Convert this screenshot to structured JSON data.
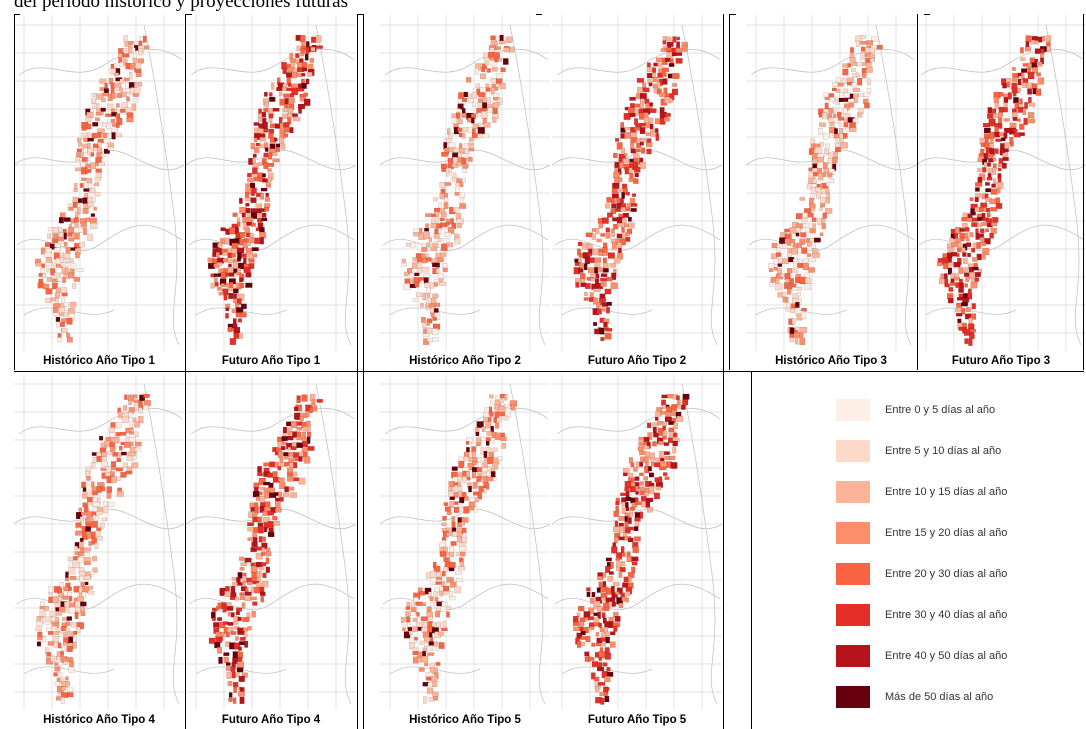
{
  "header": {
    "title": "del período histórico y proyecciones futuras"
  },
  "panels": [
    {
      "caption": "Histórico Año Tipo 1",
      "intensity": 0
    },
    {
      "caption": "Futuro Año Tipo 1",
      "intensity": 1
    },
    {
      "caption": "Histórico Año Tipo 2",
      "intensity": 0
    },
    {
      "caption": "Futuro Año Tipo 2",
      "intensity": 1
    },
    {
      "caption": "Histórico Año Tipo 3",
      "intensity": 0
    },
    {
      "caption": "Futuro Año Tipo 3",
      "intensity": 1
    },
    {
      "caption": "Histórico Año Tipo 4",
      "intensity": 0
    },
    {
      "caption": "Futuro Año Tipo 4",
      "intensity": 1
    },
    {
      "caption": "Histórico Año Tipo 5",
      "intensity": 0
    },
    {
      "caption": "Futuro Año Tipo 5",
      "intensity": 1
    }
  ],
  "legend": {
    "items": [
      {
        "label": "Entre 0 y 5 días al año",
        "color": "#fdeee6"
      },
      {
        "label": "Entre 5 y 10 días al año",
        "color": "#fcd9c8"
      },
      {
        "label": "Entre 10 y 15 días al año",
        "color": "#fcb398"
      },
      {
        "label": "Entre 15 y 20 días al año",
        "color": "#fc8e6c"
      },
      {
        "label": "Entre 20 y 30 días al año",
        "color": "#f96443"
      },
      {
        "label": "Entre 30 y 40 días al año",
        "color": "#e32f27"
      },
      {
        "label": "Entre 40 y 50 días al año",
        "color": "#b5141b"
      },
      {
        "label": "Más de 50 días al año",
        "color": "#67000d"
      }
    ]
  }
}
